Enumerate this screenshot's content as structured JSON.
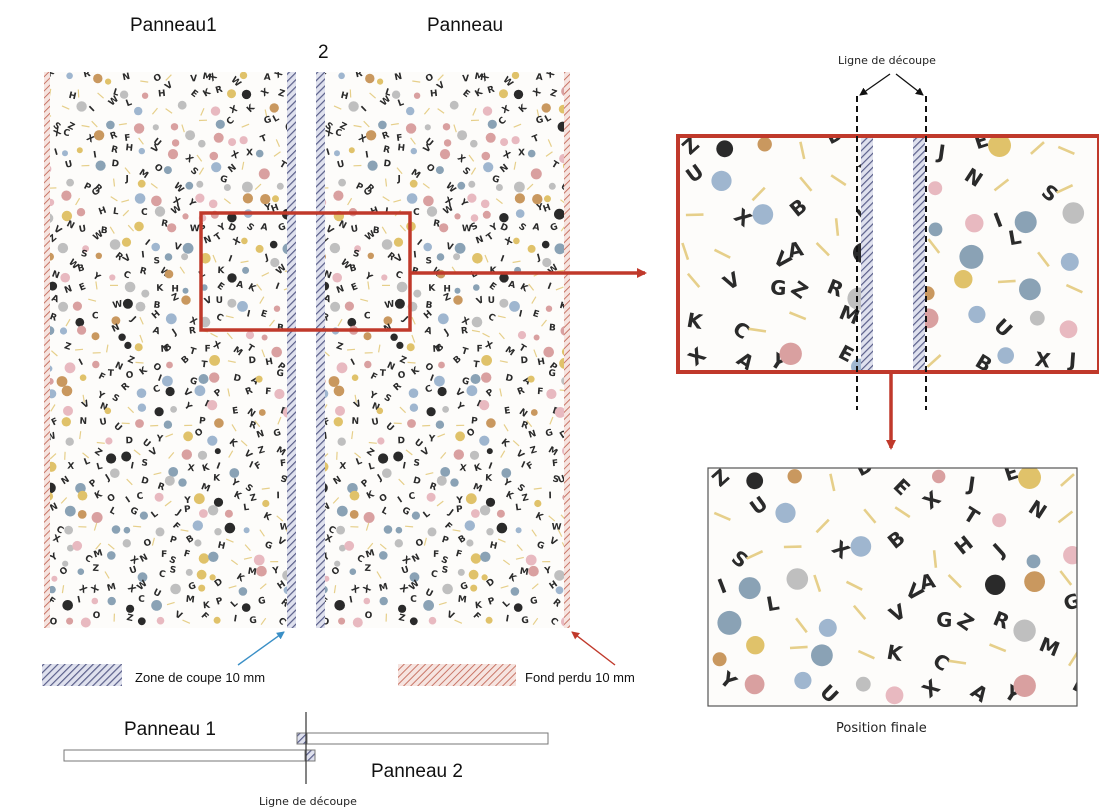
{
  "labels": {
    "panel1_title": "Panneau1",
    "panel2_title": "Panneau",
    "panel2_title_num": "2",
    "cut_line_top": "Ligne de découpe",
    "legend_cut_zone": "Zone de coupe 10 mm",
    "legend_bleed": "Fond perdu 10 mm",
    "final_position": "Position finale",
    "bottom_panel1": "Panneau 1",
    "bottom_panel2": "Panneau 2",
    "cut_line_bottom": "Ligne de découpe"
  },
  "pattern_letters": [
    "S",
    "Z",
    "C",
    "W",
    "A",
    "J",
    "B",
    "Y",
    "L",
    "H",
    "E",
    "M",
    "R",
    "U",
    "V",
    "T",
    "K",
    "X",
    "F",
    "G",
    "P",
    "O",
    "D",
    "N",
    "I"
  ],
  "colors": {
    "accent_red": "#c0392b",
    "cut_zone": "#5a5f8a",
    "bleed": "#c46a5a",
    "arrow_blue": "#3a8fc6",
    "panel_bg": "#fdfcfa",
    "pattern_ink": "#2a2a2a"
  }
}
